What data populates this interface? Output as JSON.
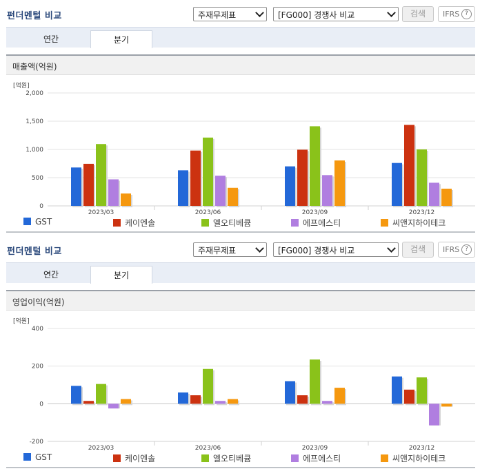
{
  "colors": {
    "GST": "#2368d8",
    "케이엔솔": "#cc3210",
    "엘오티베큠": "#8ac21a",
    "에프에스티": "#b07ee0",
    "씨앤지하이테크": "#f5980f"
  },
  "sections": [
    {
      "title": "펀더멘털 비교",
      "select_statement": "주재무제표",
      "select_compare": "[FG000] 경쟁사 비교",
      "search_label": "검색",
      "ifrs_label": "IFRS",
      "help_glyph": "?",
      "tabs": [
        {
          "label": "연간"
        },
        {
          "label": "분기"
        }
      ],
      "panel_title": "매출액(억원)",
      "unit_label": "[억원]",
      "legend": [
        "GST",
        "케이엔솔",
        "엘오티베큠",
        "에프에스티",
        "씨앤지하이테크"
      ]
    },
    {
      "title": "펀더멘털 비교",
      "select_statement": "주재무제표",
      "select_compare": "[FG000] 경쟁사 비교",
      "search_label": "검색",
      "ifrs_label": "IFRS",
      "help_glyph": "?",
      "tabs": [
        {
          "label": "연간"
        },
        {
          "label": "분기"
        }
      ],
      "panel_title": "영업이익(억원)",
      "unit_label": "[억원]",
      "legend": [
        "GST",
        "케이엔솔",
        "엘오티베큠",
        "에프에스티",
        "씨앤지하이테크"
      ]
    }
  ],
  "chart_data": [
    {
      "type": "bar",
      "title": "매출액(억원)",
      "ylabel": "[억원]",
      "categories": [
        "2023/03",
        "2023/06",
        "2023/09",
        "2023/12"
      ],
      "ylim": [
        0,
        2000
      ],
      "yticks": [
        0,
        500,
        1000,
        1500,
        2000
      ],
      "ytick_labels": [
        "0",
        "500",
        "1,000",
        "1,500",
        "2,000"
      ],
      "grid": true,
      "legend_position": "bottom",
      "series": [
        {
          "name": "GST",
          "values": [
            680,
            630,
            700,
            760
          ]
        },
        {
          "name": "케이엔솔",
          "values": [
            745,
            980,
            995,
            1435
          ]
        },
        {
          "name": "엘오티베큠",
          "values": [
            1095,
            1210,
            1410,
            1000
          ]
        },
        {
          "name": "에프에스티",
          "values": [
            470,
            535,
            545,
            410
          ]
        },
        {
          "name": "씨앤지하이테크",
          "values": [
            220,
            320,
            805,
            305
          ]
        }
      ]
    },
    {
      "type": "bar",
      "title": "영업이익(억원)",
      "ylabel": "[억원]",
      "categories": [
        "2023/03",
        "2023/06",
        "2023/09",
        "2023/12"
      ],
      "ylim": [
        -200,
        400
      ],
      "yticks": [
        -200,
        0,
        200,
        400
      ],
      "ytick_labels": [
        "-200",
        "0",
        "200",
        "400"
      ],
      "grid": true,
      "legend_position": "bottom",
      "series": [
        {
          "name": "GST",
          "values": [
            95,
            60,
            120,
            145
          ]
        },
        {
          "name": "케이엔솔",
          "values": [
            15,
            45,
            45,
            75
          ]
        },
        {
          "name": "엘오티베큠",
          "values": [
            105,
            185,
            235,
            140
          ]
        },
        {
          "name": "에프에스티",
          "values": [
            -25,
            15,
            15,
            -115
          ]
        },
        {
          "name": "씨앤지하이테크",
          "values": [
            25,
            25,
            85,
            -15
          ]
        }
      ]
    }
  ]
}
